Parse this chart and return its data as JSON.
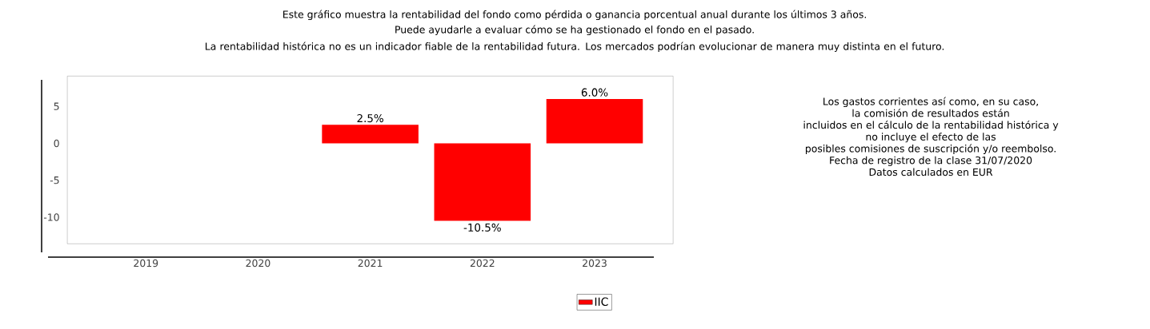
{
  "chart_data": {
    "type": "bar",
    "title": "Este gráfico muestra la rentabilidad del fondo como pérdida o ganancia porcentual anual durante los últimos 3 años.",
    "subtitle": "Puede ayudarle a evaluar cómo se ha gestionado el fondo en el pasado.",
    "annotations": [
      "La rentabilidad histórica no es un indicador fiable de la rentabilidad futura. Los mercados podrían evolucionar de manera muy distinta en el futuro.",
      "Los gastos corrientes así como, en su caso,",
      "la comisión de resultados están",
      "incluidos en el cálculo de la rentabilidad histórica y",
      "no incluye el efecto de las",
      "posibles comisiones de suscripción y/o reembolso.",
      "Fecha de registro de la clase 31/07/2020",
      "Datos calculados en EUR"
    ],
    "categories": [
      "2019",
      "2020",
      "2021",
      "2022",
      "2023"
    ],
    "series": [
      {
        "name": "IIC",
        "color": "#ff0000",
        "values": [
          null,
          null,
          2.5,
          -10.5,
          6.0
        ],
        "value_labels": [
          null,
          null,
          "2.5%",
          "-10.5%",
          "6.0%"
        ]
      }
    ],
    "ylim": [
      -13.6,
      9.1
    ],
    "yticks": [
      -10,
      -5,
      0,
      5
    ],
    "legend": "bottom"
  }
}
